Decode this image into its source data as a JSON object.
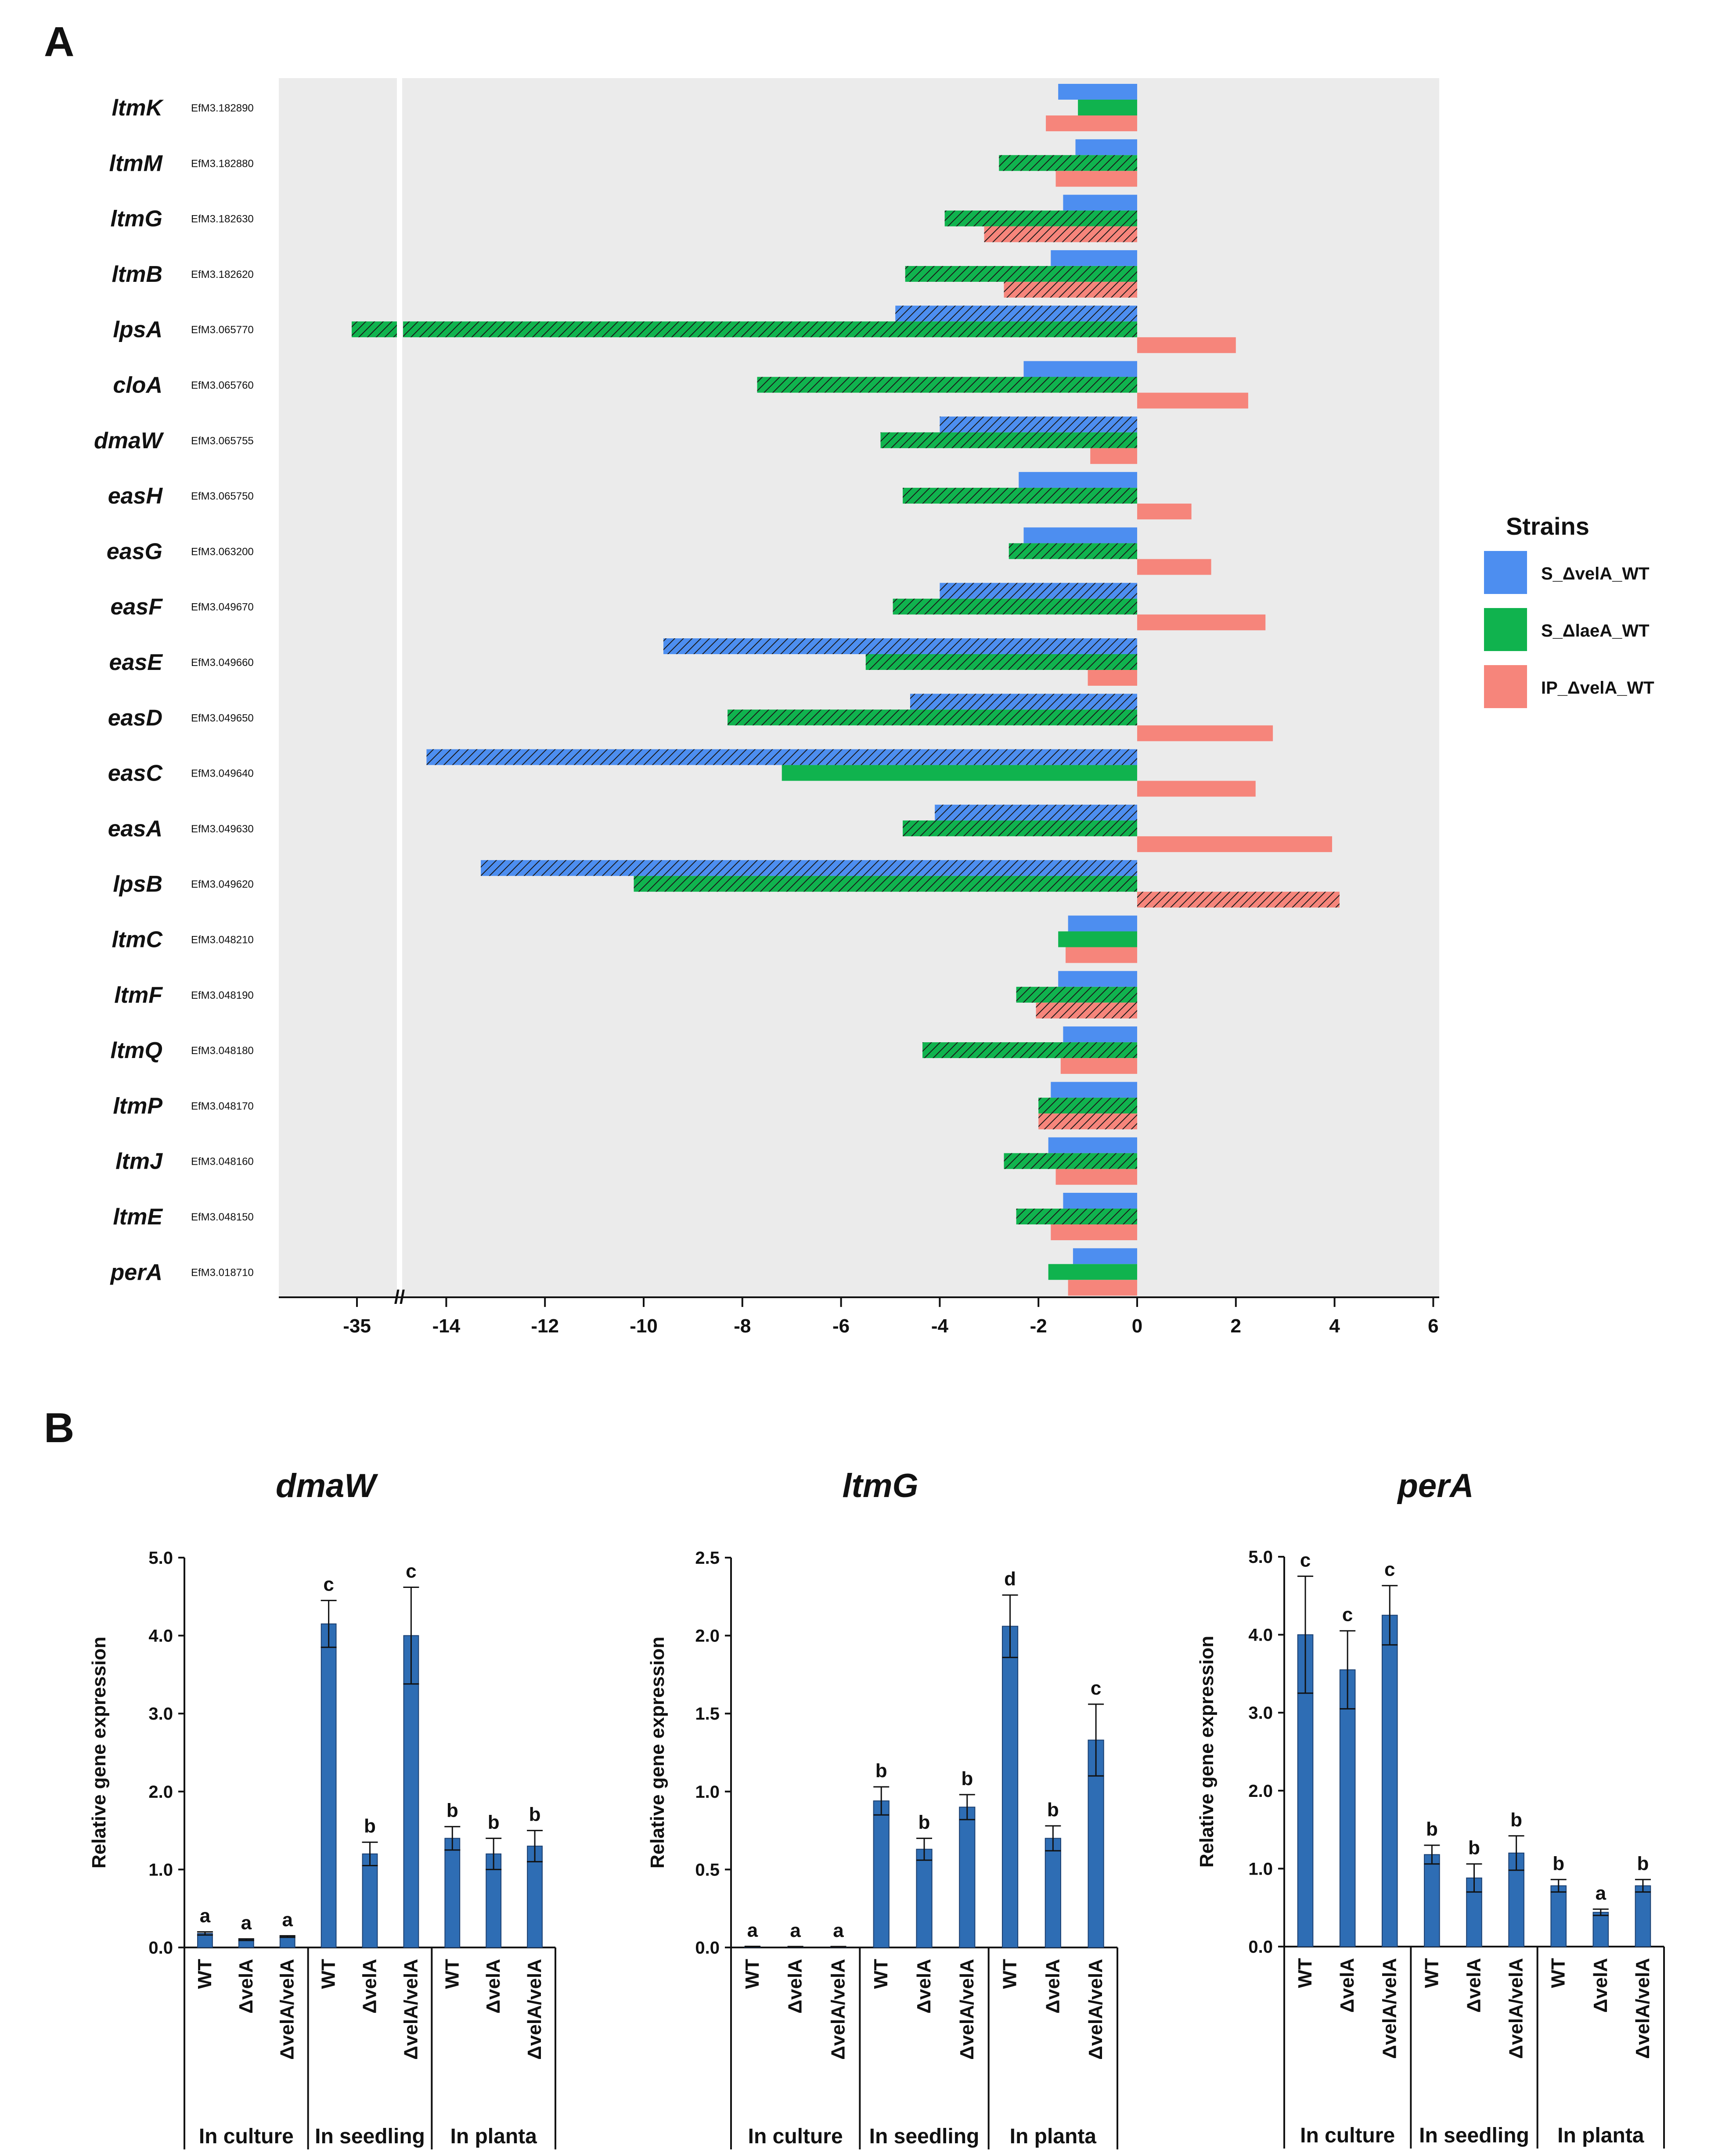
{
  "panel_a_label": "A",
  "panel_b_label": "B",
  "colors": {
    "S_velA": "#4d8ef0",
    "S_laeA": "#10b34e",
    "IP_velA": "#f6857b",
    "panel_bg": "#ebebeb",
    "bar_b": "#2e6db4"
  },
  "chart_data": [
    {
      "type": "bar",
      "orientation": "horizontal",
      "title": "",
      "xlabel": "",
      "ylabel": "",
      "xlim_segments": [
        [
          -36,
          -34
        ],
        [
          -15,
          6
        ]
      ],
      "axis_break_after": -35,
      "ticks": [
        "-35",
        "-14",
        "-12",
        "-10",
        "-8",
        "-6",
        "-4",
        "-2",
        "0",
        "2",
        "4",
        "6"
      ],
      "tick_values": [
        -35,
        -14,
        -12,
        -10,
        -8,
        -6,
        -4,
        -2,
        0,
        2,
        4,
        6
      ],
      "break_symbol": "//",
      "legend": {
        "title": "Strains",
        "position": "right",
        "entries": [
          "S_ΔvelA_WT",
          "S_ΔlaeA_WT",
          "IP_ΔvelA_WT"
        ]
      },
      "categories": [
        {
          "gene": "ltmK",
          "id": "EfM3.182890"
        },
        {
          "gene": "ltmM",
          "id": "EfM3.182880"
        },
        {
          "gene": "ltmG",
          "id": "EfM3.182630"
        },
        {
          "gene": "ltmB",
          "id": "EfM3.182620"
        },
        {
          "gene": "lpsA",
          "id": "EfM3.065770"
        },
        {
          "gene": "cloA",
          "id": "EfM3.065760"
        },
        {
          "gene": "dmaW",
          "id": "EfM3.065755"
        },
        {
          "gene": "easH",
          "id": "EfM3.065750"
        },
        {
          "gene": "easG",
          "id": "EfM3.063200"
        },
        {
          "gene": "easF",
          "id": "EfM3.049670"
        },
        {
          "gene": "easE",
          "id": "EfM3.049660"
        },
        {
          "gene": "easD",
          "id": "EfM3.049650"
        },
        {
          "gene": "easC",
          "id": "EfM3.049640"
        },
        {
          "gene": "easA",
          "id": "EfM3.049630"
        },
        {
          "gene": "lpsB",
          "id": "EfM3.049620"
        },
        {
          "gene": "ltmC",
          "id": "EfM3.048210"
        },
        {
          "gene": "ltmF",
          "id": "EfM3.048190"
        },
        {
          "gene": "ltmQ",
          "id": "EfM3.048180"
        },
        {
          "gene": "ltmP",
          "id": "EfM3.048170"
        },
        {
          "gene": "ltmJ",
          "id": "EfM3.048160"
        },
        {
          "gene": "ltmE",
          "id": "EfM3.048150"
        },
        {
          "gene": "perA",
          "id": "EfM3.018710"
        }
      ],
      "series": [
        {
          "name": "S_ΔvelA_WT",
          "values": [
            -1.6,
            -1.25,
            -1.5,
            -1.75,
            -4.9,
            -2.3,
            -4.0,
            -2.4,
            -2.3,
            -4.0,
            -9.6,
            -4.6,
            -14.4,
            -4.1,
            -13.3,
            -1.4,
            -1.6,
            -1.5,
            -1.75,
            -1.8,
            -1.5,
            -1.3
          ],
          "hatched": [
            false,
            false,
            false,
            false,
            true,
            false,
            true,
            false,
            false,
            true,
            true,
            true,
            true,
            true,
            true,
            false,
            false,
            false,
            false,
            false,
            false,
            false
          ]
        },
        {
          "name": "S_ΔlaeA_WT",
          "values": [
            -1.2,
            -2.8,
            -3.9,
            -4.7,
            -35.2,
            -7.7,
            -5.2,
            -4.75,
            -2.6,
            -4.95,
            -5.5,
            -8.3,
            -7.2,
            -4.75,
            -10.2,
            -1.6,
            -2.45,
            -4.35,
            -2.0,
            -2.7,
            -2.45,
            -1.8
          ],
          "hatched": [
            false,
            true,
            true,
            true,
            true,
            true,
            true,
            true,
            true,
            true,
            true,
            true,
            false,
            true,
            true,
            false,
            true,
            true,
            true,
            true,
            true,
            false
          ]
        },
        {
          "name": "IP_ΔvelA_WT",
          "values": [
            -1.85,
            -1.65,
            -3.1,
            -2.7,
            2.0,
            2.25,
            -0.95,
            1.1,
            1.5,
            2.6,
            -1.0,
            2.75,
            2.4,
            3.95,
            4.1,
            -1.45,
            -2.05,
            -1.55,
            -2.0,
            -1.65,
            -1.75,
            -1.4
          ],
          "hatched": [
            false,
            false,
            true,
            true,
            false,
            false,
            false,
            false,
            false,
            false,
            false,
            false,
            false,
            false,
            true,
            false,
            true,
            false,
            true,
            false,
            false,
            false
          ]
        }
      ]
    },
    {
      "type": "bar",
      "title": "dmaW",
      "ylabel": "Relative gene expression",
      "ylim": [
        0,
        5.0
      ],
      "yticks": [
        "0.0",
        "1.0",
        "2.0",
        "3.0",
        "4.0",
        "5.0"
      ],
      "categories": [
        "WT",
        "ΔvelA",
        "ΔvelA/velA",
        "WT",
        "ΔvelA",
        "ΔvelA/velA",
        "WT",
        "ΔvelA",
        "ΔvelA/velA"
      ],
      "groups": [
        "In culture",
        "In seedling",
        "In planta"
      ],
      "values": [
        0.18,
        0.1,
        0.14,
        4.15,
        1.2,
        4.0,
        1.4,
        1.2,
        1.3
      ],
      "errors": [
        0.02,
        0.01,
        0.01,
        0.3,
        0.15,
        0.62,
        0.15,
        0.2,
        0.2
      ],
      "letters": [
        "a",
        "a",
        "a",
        "c",
        "b",
        "c",
        "b",
        "b",
        "b"
      ]
    },
    {
      "type": "bar",
      "title": "ltmG",
      "ylabel": "Relative gene expression",
      "ylim": [
        0,
        2.5
      ],
      "yticks": [
        "0.0",
        "0.5",
        "1.0",
        "1.5",
        "2.0",
        "2.5"
      ],
      "categories": [
        "WT",
        "ΔvelA",
        "ΔvelA/velA",
        "WT",
        "ΔvelA",
        "ΔvelA/velA",
        "WT",
        "ΔvelA",
        "ΔvelA/velA"
      ],
      "groups": [
        "In culture",
        "In seedling",
        "In planta"
      ],
      "values": [
        0.005,
        0.004,
        0.004,
        0.94,
        0.63,
        0.9,
        2.06,
        0.7,
        1.33
      ],
      "errors": [
        0.002,
        0.002,
        0.002,
        0.09,
        0.07,
        0.08,
        0.2,
        0.08,
        0.23
      ],
      "letters": [
        "a",
        "a",
        "a",
        "b",
        "b",
        "b",
        "d",
        "b",
        "c"
      ]
    },
    {
      "type": "bar",
      "title": "perA",
      "ylabel": "Relative gene expression",
      "ylim": [
        0,
        5.0
      ],
      "yticks": [
        "0.0",
        "1.0",
        "2.0",
        "3.0",
        "4.0",
        "5.0"
      ],
      "categories": [
        "WT",
        "ΔvelA",
        "ΔvelA/velA",
        "WT",
        "ΔvelA",
        "ΔvelA/velA",
        "WT",
        "ΔvelA",
        "ΔvelA/velA"
      ],
      "groups": [
        "In culture",
        "In seedling",
        "In planta"
      ],
      "values": [
        4.0,
        3.55,
        4.25,
        1.18,
        0.88,
        1.2,
        0.78,
        0.44,
        0.78
      ],
      "errors": [
        0.75,
        0.5,
        0.38,
        0.12,
        0.18,
        0.22,
        0.08,
        0.04,
        0.08
      ],
      "letters": [
        "c",
        "c",
        "c",
        "b",
        "b",
        "b",
        "b",
        "a",
        "b"
      ]
    }
  ]
}
